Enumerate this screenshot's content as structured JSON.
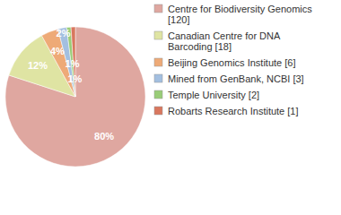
{
  "chart_data": {
    "type": "pie",
    "categories": [
      "Centre for Biodiversity Genomics [120]",
      "Canadian Centre for DNA Barcoding [18]",
      "Beijing Genomics Institute [6]",
      "Mined from GenBank, NCBI [3]",
      "Temple University [2]",
      "Robarts Research Institute [1]"
    ],
    "values": [
      80,
      12,
      4,
      2,
      1,
      1
    ],
    "value_labels": [
      "80%",
      "12%",
      "4%",
      "2%",
      "1%",
      "1%"
    ],
    "colors": [
      "#dfa7a0",
      "#dfe4a3",
      "#eeaa77",
      "#a3bfe0",
      "#99cc77",
      "#d9775e"
    ],
    "data_labels": true,
    "legend": "upper right"
  }
}
